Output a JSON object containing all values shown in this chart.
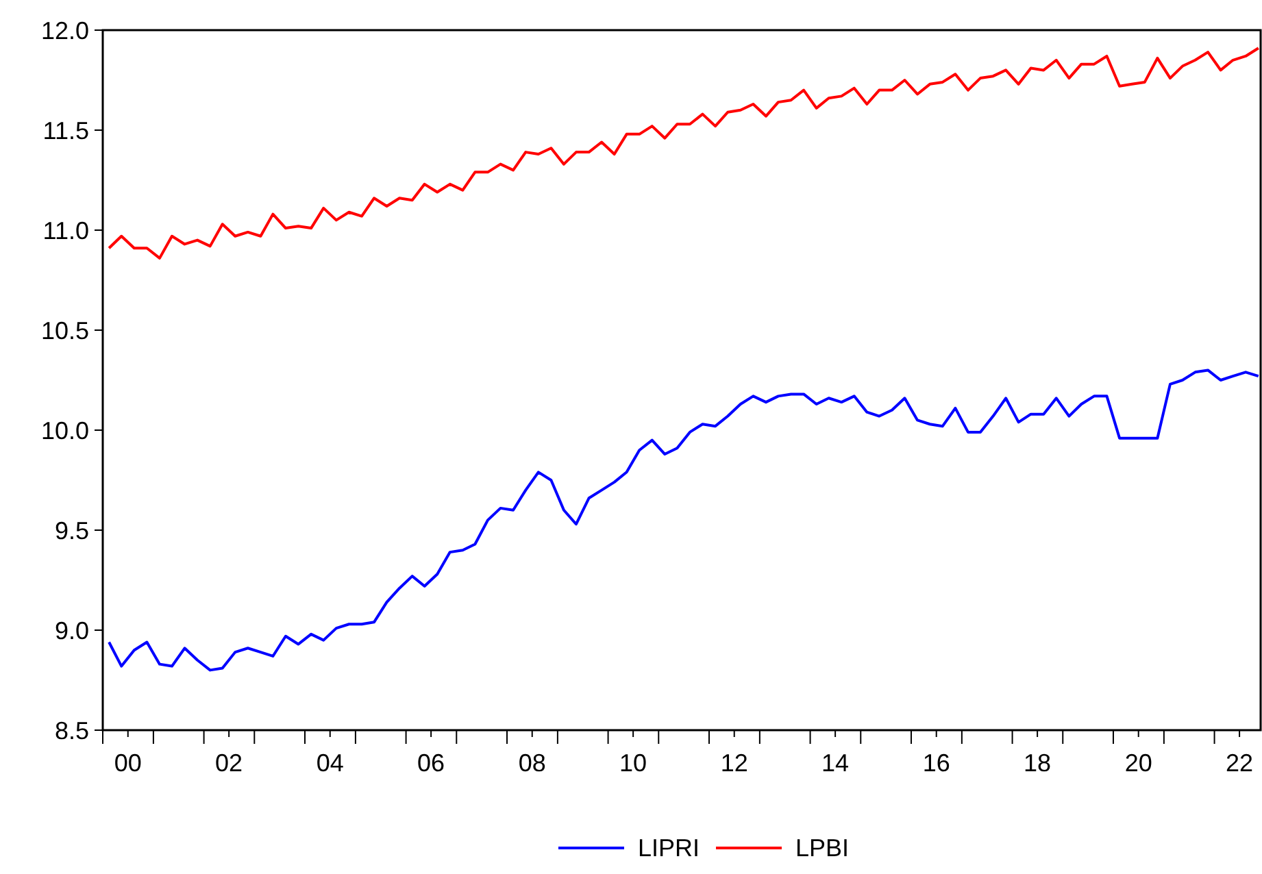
{
  "chart_data": {
    "type": "line",
    "x": [
      "2000-02-15",
      "2000-05-15",
      "2000-08-15",
      "2000-11-15",
      "2001-02-15",
      "2001-05-15",
      "2001-08-15",
      "2001-11-15",
      "2002-02-15",
      "2002-05-15",
      "2002-08-15",
      "2002-11-15",
      "2003-02-15",
      "2003-05-15",
      "2003-08-15",
      "2003-11-15",
      "2004-02-15",
      "2004-05-15",
      "2004-08-15",
      "2004-11-15",
      "2005-02-15",
      "2005-05-15",
      "2005-08-15",
      "2005-11-15",
      "2006-02-15",
      "2006-05-15",
      "2006-08-15",
      "2006-11-15",
      "2007-02-15",
      "2007-05-15",
      "2007-08-15",
      "2007-11-15",
      "2008-02-15",
      "2008-05-15",
      "2008-08-15",
      "2008-11-15",
      "2009-02-15",
      "2009-05-15",
      "2009-08-15",
      "2009-11-15",
      "2010-02-15",
      "2010-05-15",
      "2010-08-15",
      "2010-11-15",
      "2011-02-15",
      "2011-05-15",
      "2011-08-15",
      "2011-11-15",
      "2012-02-15",
      "2012-05-15",
      "2012-08-15",
      "2012-11-15",
      "2013-02-15",
      "2013-05-15",
      "2013-08-15",
      "2013-11-15",
      "2014-02-15",
      "2014-05-15",
      "2014-08-15",
      "2014-11-15",
      "2015-02-15",
      "2015-05-15",
      "2015-08-15",
      "2015-11-15",
      "2016-02-15",
      "2016-05-15",
      "2016-08-15",
      "2016-11-15",
      "2017-02-15",
      "2017-05-15",
      "2017-08-15",
      "2017-11-15",
      "2018-02-15",
      "2018-05-15",
      "2018-08-15",
      "2018-11-15",
      "2019-02-15",
      "2019-05-15",
      "2019-08-15",
      "2019-11-15",
      "2020-02-15",
      "2020-05-15",
      "2020-08-15",
      "2020-11-15",
      "2021-02-15",
      "2021-05-15",
      "2021-08-15",
      "2021-11-15",
      "2022-02-15",
      "2022-05-15",
      "2022-08-15",
      "2022-11-15"
    ],
    "series": [
      {
        "name": "LIPRI",
        "color": "#0000ff",
        "values": [
          8.94,
          8.82,
          8.9,
          8.94,
          8.83,
          8.82,
          8.91,
          8.85,
          8.8,
          8.81,
          8.89,
          8.91,
          8.89,
          8.87,
          8.97,
          8.93,
          8.98,
          8.95,
          9.01,
          9.03,
          9.03,
          9.04,
          9.14,
          9.21,
          9.27,
          9.22,
          9.28,
          9.39,
          9.4,
          9.43,
          9.55,
          9.61,
          9.6,
          9.7,
          9.79,
          9.75,
          9.6,
          9.53,
          9.66,
          9.7,
          9.74,
          9.79,
          9.9,
          9.95,
          9.88,
          9.91,
          9.99,
          10.03,
          10.02,
          10.07,
          10.13,
          10.17,
          10.14,
          10.17,
          10.18,
          10.18,
          10.13,
          10.16,
          10.14,
          10.17,
          10.09,
          10.07,
          10.1,
          10.16,
          10.05,
          10.03,
          10.02,
          10.11,
          9.99,
          9.99,
          10.07,
          10.16,
          10.04,
          10.08,
          10.08,
          10.16,
          10.07,
          10.13,
          10.17,
          10.17,
          9.96,
          9.96,
          9.96,
          9.96,
          10.23,
          10.25,
          10.29,
          10.3,
          10.25,
          10.27,
          10.29,
          10.27
        ]
      },
      {
        "name": "LPBI",
        "color": "#ff0000",
        "values": [
          10.91,
          10.97,
          10.91,
          10.91,
          10.86,
          10.97,
          10.93,
          10.95,
          10.92,
          11.03,
          10.97,
          10.99,
          10.97,
          11.08,
          11.01,
          11.02,
          11.01,
          11.11,
          11.05,
          11.09,
          11.07,
          11.16,
          11.12,
          11.16,
          11.15,
          11.23,
          11.19,
          11.23,
          11.2,
          11.29,
          11.29,
          11.33,
          11.3,
          11.39,
          11.38,
          11.41,
          11.33,
          11.39,
          11.39,
          11.44,
          11.38,
          11.48,
          11.48,
          11.52,
          11.46,
          11.53,
          11.53,
          11.58,
          11.52,
          11.59,
          11.6,
          11.63,
          11.57,
          11.64,
          11.65,
          11.7,
          11.61,
          11.66,
          11.67,
          11.71,
          11.63,
          11.7,
          11.7,
          11.75,
          11.68,
          11.73,
          11.74,
          11.78,
          11.7,
          11.76,
          11.77,
          11.8,
          11.73,
          11.81,
          11.8,
          11.85,
          11.76,
          11.83,
          11.83,
          11.87,
          11.72,
          11.73,
          11.74,
          11.86,
          11.76,
          11.82,
          11.85,
          11.89,
          11.8,
          11.85,
          11.87,
          11.91
        ]
      }
    ],
    "xlim": [
      "2000-01-01",
      "2022-12-01"
    ],
    "xticks": [
      {
        "value": "2000-01-01",
        "label": null
      },
      {
        "value": "2000-07-01",
        "label": "00"
      },
      {
        "value": "2001-01-01",
        "label": null
      },
      {
        "value": "2002-01-01",
        "label": null
      },
      {
        "value": "2002-07-01",
        "label": "02"
      },
      {
        "value": "2003-01-01",
        "label": null
      },
      {
        "value": "2004-01-01",
        "label": null
      },
      {
        "value": "2004-07-01",
        "label": "04"
      },
      {
        "value": "2005-01-01",
        "label": null
      },
      {
        "value": "2006-01-01",
        "label": null
      },
      {
        "value": "2006-07-01",
        "label": "06"
      },
      {
        "value": "2007-01-01",
        "label": null
      },
      {
        "value": "2008-01-01",
        "label": null
      },
      {
        "value": "2008-07-01",
        "label": "08"
      },
      {
        "value": "2009-01-01",
        "label": null
      },
      {
        "value": "2010-01-01",
        "label": null
      },
      {
        "value": "2010-07-01",
        "label": "10"
      },
      {
        "value": "2011-01-01",
        "label": null
      },
      {
        "value": "2012-01-01",
        "label": null
      },
      {
        "value": "2012-07-01",
        "label": "12"
      },
      {
        "value": "2013-01-01",
        "label": null
      },
      {
        "value": "2014-01-01",
        "label": null
      },
      {
        "value": "2014-07-01",
        "label": "14"
      },
      {
        "value": "2015-01-01",
        "label": null
      },
      {
        "value": "2016-01-01",
        "label": null
      },
      {
        "value": "2016-07-01",
        "label": "16"
      },
      {
        "value": "2017-01-01",
        "label": null
      },
      {
        "value": "2018-01-01",
        "label": null
      },
      {
        "value": "2018-07-01",
        "label": "18"
      },
      {
        "value": "2019-01-01",
        "label": null
      },
      {
        "value": "2020-01-01",
        "label": null
      },
      {
        "value": "2020-07-01",
        "label": "20"
      },
      {
        "value": "2021-01-01",
        "label": null
      },
      {
        "value": "2022-01-01",
        "label": null
      },
      {
        "value": "2022-07-01",
        "label": "22"
      }
    ],
    "ylim": [
      8.5,
      12.0
    ],
    "yticks": [
      {
        "value": 8.5,
        "label": "8.5"
      },
      {
        "value": 9,
        "label": "9.0"
      },
      {
        "value": 9.5,
        "label": "9.5"
      },
      {
        "value": 10,
        "label": "10.0"
      },
      {
        "value": 10.5,
        "label": "10.5"
      },
      {
        "value": 11,
        "label": "11.0"
      },
      {
        "value": 11.5,
        "label": "11.5"
      },
      {
        "value": 12,
        "label": "12.0"
      }
    ],
    "grid": false,
    "legend": "bottom",
    "marker": "none",
    "line_style": "solid"
  }
}
